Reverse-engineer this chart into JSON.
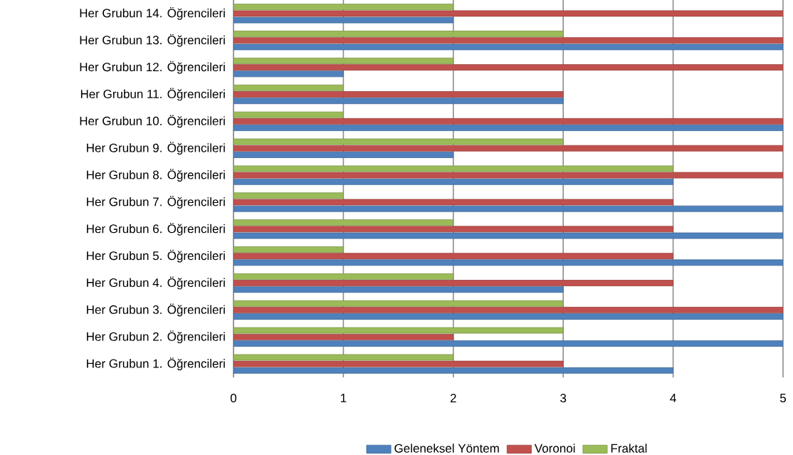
{
  "chart_data": {
    "type": "bar",
    "orientation": "horizontal",
    "categories": [
      "Her Grubun 14. Öğrencileri",
      "Her Grubun 13. Öğrencileri",
      "Her Grubun 12. Öğrencileri",
      "Her Grubun 11. Öğrencileri",
      "Her Grubun 10. Öğrencileri",
      "Her Grubun 9. Öğrencileri",
      "Her Grubun 8. Öğrencileri",
      "Her Grubun 7. Öğrencileri",
      "Her Grubun 6. Öğrencileri",
      "Her Grubun 5. Öğrencileri",
      "Her Grubun 4. Öğrencileri",
      "Her Grubun 3. Öğrencileri",
      "Her Grubun 2. Öğrencileri",
      "Her Grubun 1. Öğrencileri"
    ],
    "series": [
      {
        "name": "Geleneksel Yöntem",
        "color": "#4f81bd",
        "values": [
          2,
          5,
          1,
          3,
          5,
          2,
          4,
          5,
          5,
          5,
          3,
          5,
          5,
          4
        ]
      },
      {
        "name": "Voronoi",
        "color": "#c0504d",
        "values": [
          5,
          5,
          5,
          3,
          5,
          5,
          5,
          4,
          4,
          4,
          4,
          5,
          2,
          3
        ]
      },
      {
        "name": "Fraktal",
        "color": "#9bbb59",
        "values": [
          2,
          3,
          2,
          1,
          1,
          3,
          4,
          1,
          2,
          1,
          2,
          3,
          3,
          2
        ]
      }
    ],
    "xlim": [
      0,
      5
    ],
    "xticks": [
      0,
      1,
      2,
      3,
      4,
      5
    ],
    "grid": "x",
    "legend": "bottom"
  }
}
